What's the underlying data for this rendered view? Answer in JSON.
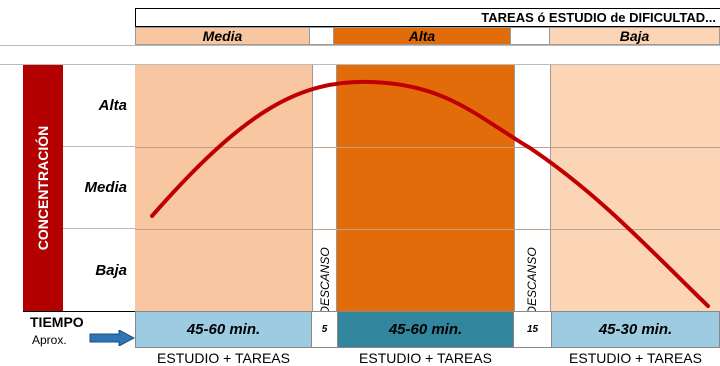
{
  "header": {
    "title": "TAREAS ó ESTUDIO de DIFICULTAD..."
  },
  "difficulty_bands": [
    {
      "label": "Media",
      "color": "#f8c6a0"
    },
    {
      "label": "Alta",
      "color": "#e36c0a"
    },
    {
      "label": "Baja",
      "color": "#fbd5b5"
    }
  ],
  "concentration": {
    "axis_label": "CONCENTRACIÓN",
    "levels": [
      "Alta",
      "Media",
      "Baja"
    ]
  },
  "breaks": [
    {
      "label": "DESCANSO",
      "minutes": "5"
    },
    {
      "label": "DESCANSO",
      "minutes": "15"
    }
  ],
  "tiempo": {
    "label": "TIEMPO",
    "sublabel": "Aprox.",
    "blocks": [
      "45-60 min.",
      "45-60 min.",
      "45-30 min."
    ]
  },
  "activity_labels": [
    "ESTUDIO + TAREAS",
    "ESTUDIO + TAREAS",
    "ESTUDIO + TAREAS"
  ],
  "colors": {
    "axis_red": "#b30000",
    "curve": "#c00000",
    "time_light": "#9dcce2",
    "time_dark": "#31859c",
    "arrow": "#2e75b6"
  }
}
